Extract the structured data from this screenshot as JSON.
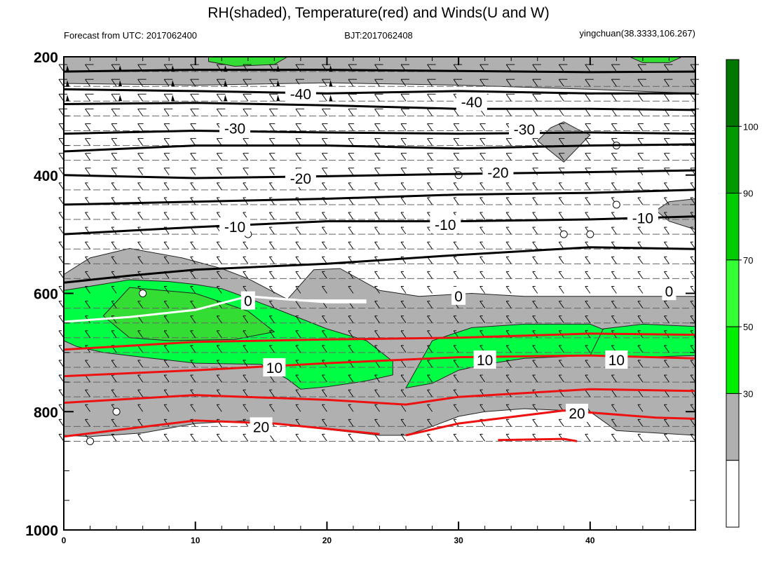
{
  "chart_data": {
    "type": "heatmap",
    "title": "RH(shaded), Temperature(red) and Winds(U and W)",
    "subtitle_left": "Forecast from UTC: 2017062400",
    "subtitle_center": "BJT:2017062408",
    "subtitle_right": "yingchuan(38.3333,106.267)",
    "x_range": [
      0,
      48
    ],
    "y_range": [
      1000,
      200
    ],
    "y_axis": "pressure (inverted)",
    "x_ticks": [
      0,
      10,
      20,
      30,
      40
    ],
    "y_ticks": [
      200,
      400,
      600,
      800,
      1000
    ],
    "colorbar": {
      "levels": [
        30,
        50,
        70,
        90,
        100
      ],
      "colors": [
        "#ffffff",
        "#b0b0b0",
        "#00ee00",
        "#33ff33",
        "#00cc00",
        "#009900",
        "#007700"
      ]
    },
    "shading_colors": {
      "gray": "#b0b0b0",
      "light_green": "#00ff44",
      "green": "#33dd33",
      "dark_green": "#007700"
    },
    "temperature_contours": [
      {
        "value": -40,
        "label": "-40",
        "color": "#000000",
        "points": [
          [
            0,
            255
          ],
          [
            10,
            258
          ],
          [
            20,
            262
          ],
          [
            30,
            258
          ],
          [
            40,
            262
          ],
          [
            48,
            262
          ]
        ]
      },
      {
        "value": -30,
        "label": "-30",
        "color": "#000000",
        "points": [
          [
            0,
            330
          ],
          [
            10,
            325
          ],
          [
            20,
            328
          ],
          [
            30,
            330
          ],
          [
            40,
            328
          ],
          [
            48,
            330
          ]
        ]
      },
      {
        "value": -20,
        "label": "-20",
        "color": "#000000",
        "points": [
          [
            0,
            400
          ],
          [
            10,
            405
          ],
          [
            20,
            402
          ],
          [
            30,
            398
          ],
          [
            40,
            395
          ],
          [
            48,
            392
          ]
        ]
      },
      {
        "value": -10,
        "label": "-10",
        "color": "#000000",
        "points": [
          [
            0,
            500
          ],
          [
            10,
            488
          ],
          [
            20,
            478
          ],
          [
            30,
            478
          ],
          [
            40,
            475
          ],
          [
            48,
            470
          ]
        ]
      },
      {
        "value": 0,
        "label": "0",
        "color": "#ffffff",
        "points": [
          [
            0,
            648
          ],
          [
            5,
            640
          ],
          [
            10,
            628
          ],
          [
            14,
            605
          ],
          [
            20,
            615
          ],
          [
            23,
            615
          ]
        ]
      },
      {
        "value": 10,
        "label": "10",
        "color": "#ee1111",
        "points": [
          [
            0,
            740
          ],
          [
            10,
            730
          ],
          [
            20,
            718
          ],
          [
            30,
            708
          ],
          [
            40,
            705
          ],
          [
            48,
            710
          ]
        ]
      },
      {
        "value": 20,
        "label": "20",
        "color": "#ee1111",
        "points": [
          [
            0,
            842
          ],
          [
            10,
            815
          ],
          [
            16,
            820
          ],
          [
            24,
            838
          ]
        ]
      }
    ],
    "labels_on_contours": [
      {
        "text": "-40",
        "x": 18,
        "y": 262
      },
      {
        "text": "-40",
        "x": 31,
        "y": 276
      },
      {
        "text": "-30",
        "x": 13,
        "y": 320
      },
      {
        "text": "-30",
        "x": 35,
        "y": 322
      },
      {
        "text": "-20",
        "x": 18,
        "y": 405
      },
      {
        "text": "-20",
        "x": 33,
        "y": 395
      },
      {
        "text": "-10",
        "x": 13,
        "y": 487
      },
      {
        "text": "-10",
        "x": 29,
        "y": 483
      },
      {
        "text": "-10",
        "x": 44,
        "y": 472
      },
      {
        "text": "0",
        "x": 14,
        "y": 612
      },
      {
        "text": "0",
        "x": 30,
        "y": 604
      },
      {
        "text": "0",
        "x": 46,
        "y": 596
      },
      {
        "text": "10",
        "x": 16,
        "y": 725
      },
      {
        "text": "10",
        "x": 32,
        "y": 712
      },
      {
        "text": "10",
        "x": 42,
        "y": 712
      },
      {
        "text": "20",
        "x": 15,
        "y": 825
      },
      {
        "text": "20",
        "x": 39,
        "y": 802
      }
    ]
  }
}
